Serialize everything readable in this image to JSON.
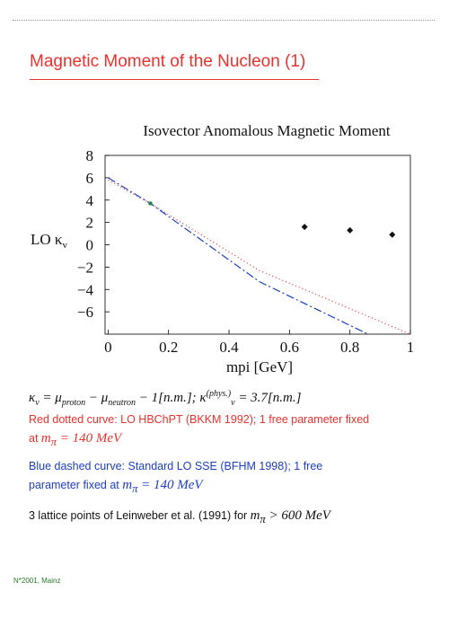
{
  "slide": {
    "title": "Magnetic Moment of the Nucleon (1)",
    "footer": "N*2001, Mainz"
  },
  "formula": {
    "kv": "κ",
    "kv_sub": "v",
    "eq": " = μ",
    "proton_sub": "proton",
    "minus": " − μ",
    "neutron_sub": "neutron",
    "rest": " − 1[n.m.];  κ",
    "phys_sup": "(phys.)",
    "value": " = 3.7[n.m.]"
  },
  "notes": {
    "red_line1": "Red dotted curve: LO HBChPT (BKKM 1992); 1 free parameter fixed",
    "red_line2_prefix": "at ",
    "red_line2_math": "m",
    "red_line2_math_sub": "π",
    "red_line2_value": " = 140 MeV",
    "blue_line1": "Blue dashed curve: Standard LO SSE (BFHM 1998); 1 free",
    "blue_line2_prefix": "parameter fixed at ",
    "blue_line2_math": "m",
    "blue_line2_math_sub": "π",
    "blue_line2_value": " = 140 MeV",
    "black_line_prefix": "3 lattice points of Leinweber et al. (1991) for ",
    "black_line_math": "m",
    "black_line_math_sub": "π",
    "black_line_value": " > 600 MeV"
  },
  "colors": {
    "red_curve": "#e8322e",
    "blue_curve": "#1f3fbf",
    "points": "#111111",
    "green_marker": "#1a8a3a"
  },
  "chart_data": {
    "type": "line",
    "title": "Isovector Anomalous Magnetic Moment",
    "xlabel": "mpi [GeV]",
    "ylabel": "LO κ",
    "ylabel_sub": "v",
    "xlim": [
      -0.01,
      1.0
    ],
    "ylim": [
      -8,
      8
    ],
    "x_ticks": [
      0,
      0.2,
      0.4,
      0.6,
      0.8,
      1
    ],
    "x_tick_labels": [
      "0",
      "0.2",
      "0.4",
      "0.6",
      "0.8",
      "1"
    ],
    "y_ticks": [
      8,
      6,
      4,
      2,
      0,
      -2,
      -4,
      -6
    ],
    "y_tick_labels": [
      "8",
      "6",
      "4",
      "2",
      "0",
      "−2",
      "−4",
      "−6"
    ],
    "grid": false,
    "series": [
      {
        "name": "Red dotted curve: LO HBChPT (BKKM 1992)",
        "style": "dotted",
        "color": "#e8322e",
        "x": [
          0,
          0.14,
          0.5,
          1.0
        ],
        "y": [
          5.8,
          3.7,
          -2.3,
          -8.0
        ]
      },
      {
        "name": "Blue dashed curve: Standard LO SSE (BFHM 1998)",
        "style": "dashdot",
        "color": "#1f3fbf",
        "x": [
          0,
          0.14,
          0.5,
          0.86
        ],
        "y": [
          6.0,
          3.7,
          -3.3,
          -8.0
        ]
      },
      {
        "name": "3 lattice points of Leinweber et al. (1991)",
        "style": "points",
        "color": "#111111",
        "x": [
          0.65,
          0.8,
          0.94
        ],
        "y": [
          1.6,
          1.3,
          0.9
        ]
      }
    ],
    "physical_point": {
      "x": 0.14,
      "y": 3.7
    }
  }
}
